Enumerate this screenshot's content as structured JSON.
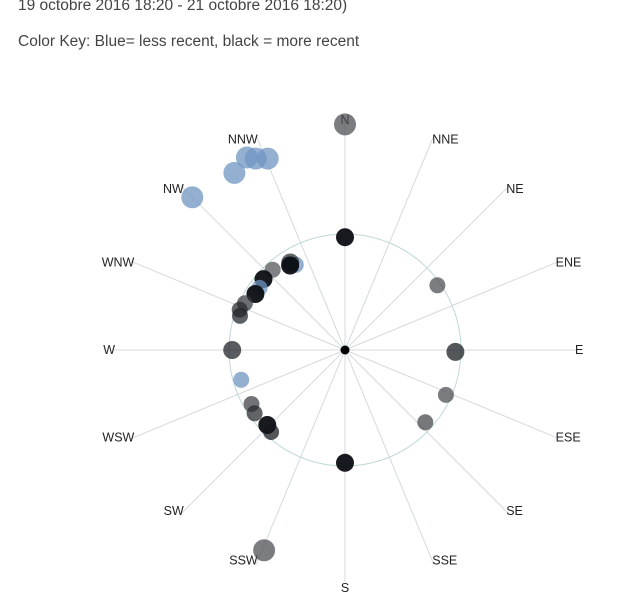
{
  "header": {
    "period": "19 octobre 2016 18:20 - 21 octobre 2016 18:20)",
    "color_key": "Color Key: Blue= less recent, black = more recent"
  },
  "chart_data": {
    "type": "scatter",
    "subtype": "polar wind rose",
    "directions": [
      "N",
      "NNE",
      "NE",
      "ENE",
      "E",
      "ESE",
      "SE",
      "SSE",
      "S",
      "SSW",
      "SW",
      "WSW",
      "W",
      "WNW",
      "NW",
      "NNW"
    ],
    "reference_circle": "single radial ring",
    "color_key": {
      "less_recent": "#6f96c1",
      "more_recent": "#0b0f14"
    },
    "axis_color": "#d4dadd",
    "ring_color": "#bfd9d6",
    "points": [
      {
        "dir": 0,
        "r": 0.94,
        "recency": 0.45
      },
      {
        "dir": 0,
        "r": 0.47,
        "recency": 1.0
      },
      {
        "dir": 0,
        "r": 0.47,
        "recency": 1.0,
        "half": "S"
      },
      {
        "dir": 333,
        "r": 0.9,
        "recency": 0.15
      },
      {
        "dir": 335,
        "r": 0.88,
        "recency": 0.05
      },
      {
        "dir": 338,
        "r": 0.86,
        "recency": 0.3
      },
      {
        "dir": 328,
        "r": 0.87,
        "recency": 0.1
      },
      {
        "dir": 315,
        "r": 0.9,
        "recency": 0.05
      },
      {
        "dir": 330,
        "r": 0.41,
        "recency": 0.2
      },
      {
        "dir": 328,
        "r": 0.43,
        "recency": 0.7
      },
      {
        "dir": 327,
        "r": 0.42,
        "recency": 0.95
      },
      {
        "dir": 318,
        "r": 0.45,
        "recency": 0.4
      },
      {
        "dir": 311,
        "r": 0.45,
        "recency": 0.95
      },
      {
        "dir": 306,
        "r": 0.44,
        "recency": 0.15
      },
      {
        "dir": 302,
        "r": 0.44,
        "recency": 0.9
      },
      {
        "dir": 295,
        "r": 0.46,
        "recency": 0.6
      },
      {
        "dir": 291,
        "r": 0.47,
        "recency": 0.7
      },
      {
        "dir": 288,
        "r": 0.46,
        "recency": 0.75
      },
      {
        "dir": 270,
        "r": 0.47,
        "recency": 0.8
      },
      {
        "dir": 254,
        "r": 0.45,
        "recency": 0.1
      },
      {
        "dir": 240,
        "r": 0.45,
        "recency": 0.55
      },
      {
        "dir": 235,
        "r": 0.46,
        "recency": 0.7
      },
      {
        "dir": 226,
        "r": 0.45,
        "recency": 0.95
      },
      {
        "dir": 222,
        "r": 0.46,
        "recency": 0.85
      },
      {
        "dir": 202,
        "r": 0.9,
        "recency": 0.45
      },
      {
        "dir": 132,
        "r": 0.45,
        "recency": 0.5
      },
      {
        "dir": 114,
        "r": 0.46,
        "recency": 0.45
      },
      {
        "dir": 91,
        "r": 0.46,
        "recency": 0.85
      },
      {
        "dir": 55,
        "r": 0.47,
        "recency": 0.45
      }
    ],
    "sizes": [
      22,
      18,
      18,
      22,
      22,
      22,
      22,
      22,
      16,
      18,
      18,
      16,
      18,
      16,
      18,
      16,
      16,
      16,
      18,
      16,
      16,
      16,
      18,
      16,
      22,
      16,
      16,
      18,
      16
    ]
  }
}
